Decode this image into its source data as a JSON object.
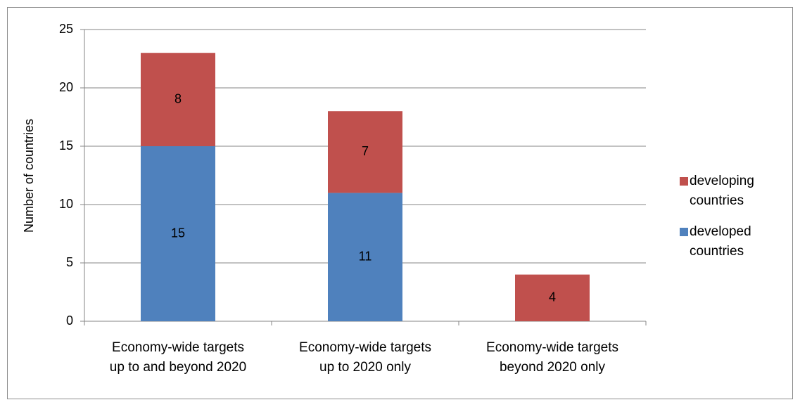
{
  "chart_data": {
    "type": "stacked_bar",
    "y_axis_label": "Number of countries",
    "categories": [
      "Economy-wide targets up to and beyond 2020",
      "Economy-wide targets up to 2020 only",
      "Economy-wide targets beyond 2020 only"
    ],
    "series": [
      {
        "name": "developed countries",
        "color": "#4f81bd",
        "values": [
          15,
          11,
          null
        ]
      },
      {
        "name": "developing countries",
        "color": "#c0504d",
        "values": [
          8,
          7,
          4
        ]
      }
    ],
    "ylim": [
      0,
      25
    ],
    "yticks": [
      0,
      5,
      10,
      15,
      20,
      25
    ],
    "grid": true,
    "legend": "right"
  }
}
